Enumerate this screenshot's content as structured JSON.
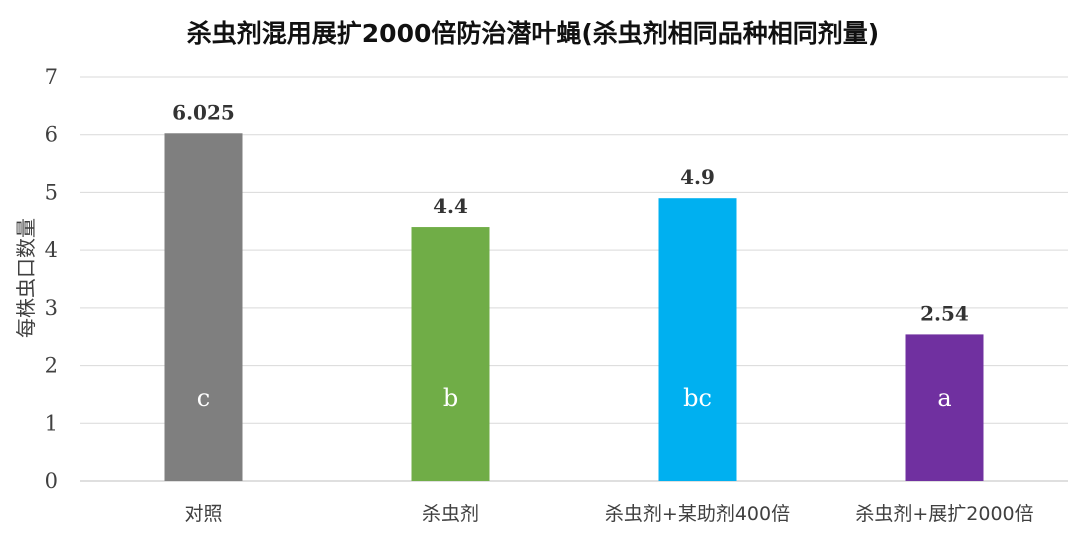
{
  "chart_data": {
    "type": "bar",
    "title": "杀虫剂混用展扩2000倍防治潜叶蝇(杀虫剂相同品种相同剂量)",
    "xlabel": "",
    "ylabel": "每株虫口数量",
    "ylim": [
      0,
      7
    ],
    "yticks": [
      "0",
      "1",
      "2",
      "3",
      "4",
      "5",
      "6",
      "7"
    ],
    "grid": true,
    "legend": "none",
    "categories": [
      "对照",
      "杀虫剂",
      "杀虫剂+某助剂400倍",
      "杀虫剂+展扩2000倍"
    ],
    "values": [
      6.025,
      4.4,
      4.9,
      2.54
    ],
    "value_labels": [
      "6.025",
      "4.4",
      "4.9",
      "2.54"
    ],
    "significance_letters": [
      "c",
      "b",
      "bc",
      "a"
    ],
    "colors": [
      "#7f7f7f",
      "#70ad47",
      "#00b0f0",
      "#7030a0"
    ]
  }
}
